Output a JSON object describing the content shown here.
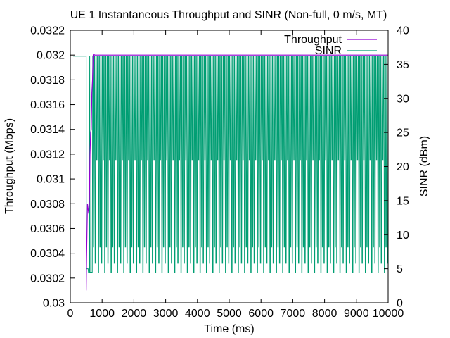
{
  "chart_data": {
    "type": "line",
    "title": "UE 1 Instantaneous Throughput and SINR (Non-full, 0 m/s, MT)",
    "xlabel": "Time (ms)",
    "ylabel": "Throughput (Mbps)",
    "y2label": "SINR (dBm)",
    "xlim": [
      0,
      10000
    ],
    "ylim": [
      0.03,
      0.0322
    ],
    "y2lim": [
      0,
      40
    ],
    "xticks": [
      0,
      1000,
      2000,
      3000,
      4000,
      5000,
      6000,
      7000,
      8000,
      9000,
      10000
    ],
    "xtick_labels": [
      "0",
      "1000",
      "2000",
      "3000",
      "4000",
      "5000",
      "6000",
      "7000",
      "8000",
      "9000",
      "10000"
    ],
    "yticks": [
      0.03,
      0.0302,
      0.0304,
      0.0306,
      0.0308,
      0.031,
      0.0312,
      0.0314,
      0.0316,
      0.0318,
      0.032,
      0.0322
    ],
    "ytick_labels": [
      "0.03",
      "0.0302",
      "0.0304",
      "0.0306",
      "0.0308",
      "0.031",
      "0.0312",
      "0.0314",
      "0.0316",
      "0.0318",
      "0.032",
      "0.0322"
    ],
    "y2ticks": [
      0,
      5,
      10,
      15,
      20,
      25,
      30,
      35,
      40
    ],
    "y2tick_labels": [
      "0",
      "5",
      "10",
      "15",
      "20",
      "25",
      "30",
      "35",
      "40"
    ],
    "legend_position": "top-right",
    "grid": false,
    "series": [
      {
        "name": "Throughput",
        "axis": "left",
        "color": "#9400d3",
        "x": [
          500,
          510,
          540,
          580,
          600,
          620,
          640,
          660,
          680,
          700,
          720,
          740,
          760,
          800,
          1500,
          2500,
          3500,
          3900,
          4000,
          5000,
          6000,
          7000,
          8000,
          9000,
          10000
        ],
        "y": [
          0.0301,
          0.03035,
          0.0308,
          0.03072,
          0.0308,
          0.0312,
          0.03137,
          0.0314,
          0.0317,
          0.0318,
          0.032,
          0.03201,
          0.032,
          0.032,
          0.032,
          0.032,
          0.032,
          0.032,
          0.032,
          0.032,
          0.032,
          0.032,
          0.032,
          0.032,
          0.032
        ]
      },
      {
        "name": "SINR",
        "axis": "right",
        "color": "#009e73",
        "start_level": 36.2,
        "start_until": 480,
        "drop_to": 5.0,
        "drop_at": 560,
        "pattern_start": 680,
        "pattern_end": 10000,
        "baseline": 4.5,
        "levels": [
          4.5,
          36.2,
          8.2,
          36.2,
          5.8,
          36.2,
          21.0,
          36.2
        ]
      }
    ]
  }
}
